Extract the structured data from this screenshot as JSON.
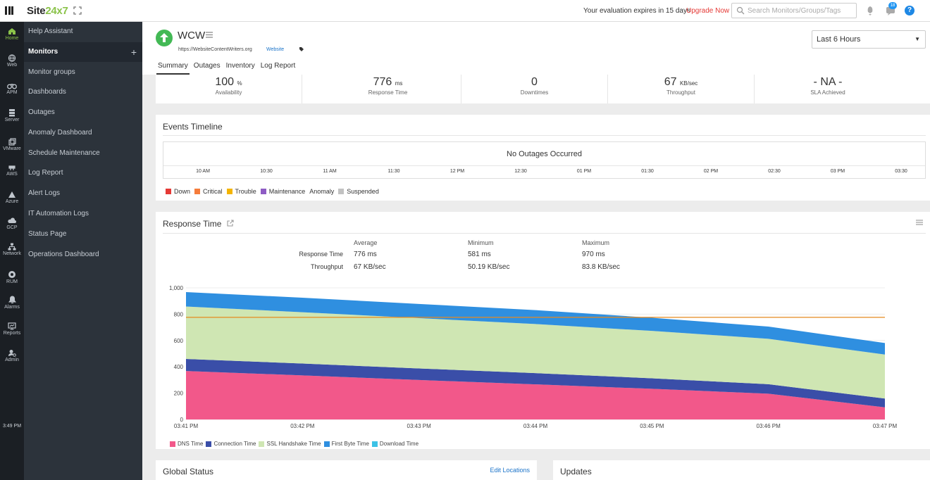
{
  "topbar": {
    "logo_main": "Site",
    "logo_accent": "24x7",
    "evaluation_text": "Your evaluation expires in 15 days",
    "upgrade_label": "Upgrade Now",
    "search_placeholder": "Search Monitors/Groups/Tags",
    "notification_count": "18",
    "help_label": "?"
  },
  "rail": {
    "items": [
      "Home",
      "Web",
      "APM",
      "Server",
      "VMware",
      "AWS",
      "Azure",
      "GCP",
      "Network",
      "RUM",
      "Alarms",
      "Reports",
      "Admin"
    ],
    "time": "3:49 PM"
  },
  "menu": {
    "items": [
      "Help Assistant",
      "Monitors",
      "Monitor groups",
      "Dashboards",
      "Outages",
      "Anomaly Dashboard",
      "Schedule Maintenance",
      "Log Report",
      "Alert Logs",
      "IT Automation Logs",
      "Status Page",
      "Operations Dashboard"
    ],
    "active_index": 1,
    "add_label": "+"
  },
  "monitor": {
    "name": "WCW",
    "url": "https://WebsiteContentWriters.org",
    "type": "Website",
    "status": "up",
    "tabs": [
      "Summary",
      "Outages",
      "Inventory",
      "Log Report"
    ],
    "time_range": "Last 6 Hours"
  },
  "stats": [
    {
      "value": "100",
      "unit": "%",
      "label": "Availability"
    },
    {
      "value": "776",
      "unit": "ms",
      "label": "Response Time"
    },
    {
      "value": "0",
      "unit": "",
      "label": "Downtimes"
    },
    {
      "value": "67",
      "unit": "KB/sec",
      "label": "Throughput"
    },
    {
      "value": "- NA -",
      "unit": "",
      "label": "SLA Achieved"
    }
  ],
  "events": {
    "title": "Events Timeline",
    "message": "No Outages Occurred",
    "ticks": [
      "10 AM",
      "10:30",
      "11 AM",
      "11:30",
      "12 PM",
      "12:30",
      "01 PM",
      "01:30",
      "02 PM",
      "02:30",
      "03 PM",
      "03:30"
    ],
    "legend": [
      {
        "label": "Down",
        "color": "#e53935"
      },
      {
        "label": "Critical",
        "color": "#f57c3b"
      },
      {
        "label": "Trouble",
        "color": "#f4b400"
      },
      {
        "label": "Maintenance",
        "color": "#8e5cc4"
      },
      {
        "label": "Anomaly",
        "color": ""
      },
      {
        "label": "Suspended",
        "color": "#c2c2c2"
      }
    ]
  },
  "response": {
    "title": "Response Time",
    "headers": [
      "Average",
      "Minimum",
      "Maximum"
    ],
    "rows": [
      {
        "label": "Response Time",
        "values": [
          "776 ms",
          "581 ms",
          "970 ms"
        ]
      },
      {
        "label": "Throughput",
        "values": [
          "67 KB/sec",
          "50.19 KB/sec",
          "83.8 KB/sec"
        ]
      }
    ]
  },
  "chart_data": {
    "type": "area",
    "stacked": true,
    "x": [
      "03:41 PM",
      "03:42 PM",
      "03:43 PM",
      "03:44 PM",
      "03:45 PM",
      "03:46 PM",
      "03:47 PM"
    ],
    "ylim": [
      0,
      1000
    ],
    "yticks": [
      0,
      200,
      400,
      600,
      800,
      1000
    ],
    "ytick_labels": [
      "0",
      "200",
      "400",
      "600",
      "800",
      "1,000"
    ],
    "reference_line": {
      "value": 776,
      "color": "#e58a1f"
    },
    "series": [
      {
        "name": "DNS Time",
        "color": "#f2588a",
        "values": [
          368,
          335,
          300,
          267,
          233,
          196,
          92
        ]
      },
      {
        "name": "Connection Time",
        "color": "#3a4ea8",
        "values": [
          92,
          90,
          88,
          85,
          80,
          72,
          67
        ]
      },
      {
        "name": "SSL Handshake Time",
        "color": "#cfe6b3",
        "values": [
          398,
          390,
          382,
          373,
          360,
          345,
          334
        ]
      },
      {
        "name": "First Byte Time",
        "color": "#2f8fe0",
        "values": [
          110,
          110,
          108,
          106,
          100,
          93,
          88
        ]
      },
      {
        "name": "Download Time",
        "color": "#3cc2e6",
        "values": [
          0,
          0,
          0,
          0,
          0,
          0,
          0
        ]
      }
    ],
    "legend_position": "bottom-left"
  },
  "global_status": {
    "title": "Global Status",
    "edit_label": "Edit Locations"
  },
  "updates": {
    "title": "Updates"
  }
}
